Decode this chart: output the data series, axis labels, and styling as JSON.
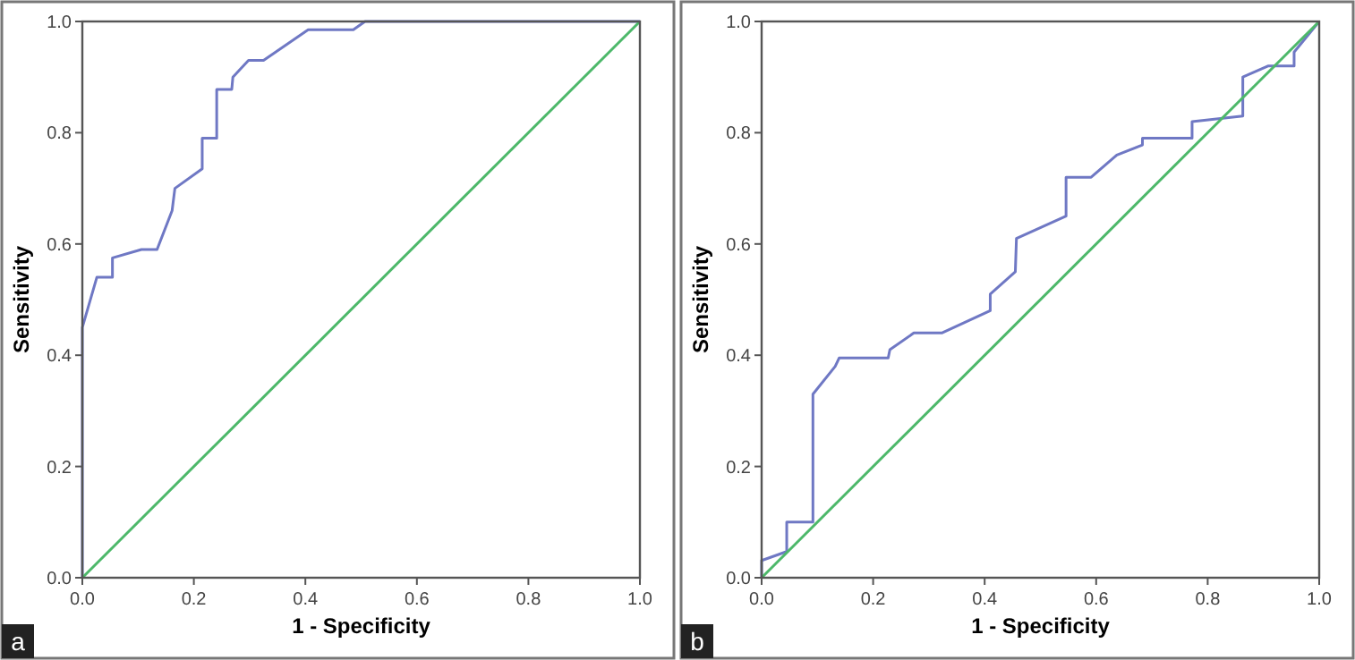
{
  "chart_data": [
    {
      "type": "line",
      "xlabel": "1 - Specificity",
      "ylabel": "Sensitivity",
      "annotations": [
        "a"
      ],
      "xlim": [
        0,
        1
      ],
      "ylim": [
        0,
        1
      ],
      "xticks": [
        {
          "value": 0,
          "label": "0.0"
        },
        {
          "value": 0.2,
          "label": "0.2"
        },
        {
          "value": 0.4,
          "label": "0.4"
        },
        {
          "value": 0.6,
          "label": "0.6"
        },
        {
          "value": 0.8,
          "label": "0.8"
        },
        {
          "value": 1,
          "label": "1.0"
        }
      ],
      "yticks": [
        {
          "value": 0,
          "label": "0.0"
        },
        {
          "value": 0.2,
          "label": "0.2"
        },
        {
          "value": 0.4,
          "label": "0.4"
        },
        {
          "value": 0.6,
          "label": "0.6"
        },
        {
          "value": 0.8,
          "label": "0.8"
        },
        {
          "value": 1,
          "label": "1.0"
        }
      ],
      "grid": false,
      "marker": "none",
      "line_style": "solid",
      "series": [
        {
          "color": "#6f78c4",
          "x": [
            0,
            0,
            0.026,
            0.054,
            0.054,
            0.106,
            0.134,
            0.161,
            0.166,
            0.215,
            0.215,
            0.241,
            0.241,
            0.268,
            0.27,
            0.298,
            0.325,
            0.405,
            0.486,
            0.507,
            1
          ],
          "values": [
            0,
            0.45,
            0.54,
            0.54,
            0.575,
            0.59,
            0.59,
            0.66,
            0.7,
            0.735,
            0.79,
            0.79,
            0.878,
            0.878,
            0.9,
            0.93,
            0.93,
            0.985,
            0.985,
            1,
            1
          ]
        },
        {
          "color": "#4db86a",
          "x": [
            0,
            1
          ],
          "values": [
            0,
            1
          ]
        }
      ]
    },
    {
      "type": "line",
      "xlabel": "1 - Specificity",
      "ylabel": "Sensitivity",
      "annotations": [
        "b"
      ],
      "xlim": [
        0,
        1
      ],
      "ylim": [
        0,
        1
      ],
      "xticks": [
        {
          "value": 0,
          "label": "0.0"
        },
        {
          "value": 0.2,
          "label": "0.2"
        },
        {
          "value": 0.4,
          "label": "0.4"
        },
        {
          "value": 0.6,
          "label": "0.6"
        },
        {
          "value": 0.8,
          "label": "0.8"
        },
        {
          "value": 1,
          "label": "1.0"
        }
      ],
      "yticks": [
        {
          "value": 0,
          "label": "0.0"
        },
        {
          "value": 0.2,
          "label": "0.2"
        },
        {
          "value": 0.4,
          "label": "0.4"
        },
        {
          "value": 0.6,
          "label": "0.6"
        },
        {
          "value": 0.8,
          "label": "0.8"
        },
        {
          "value": 1,
          "label": "1.0"
        }
      ],
      "grid": false,
      "marker": "none",
      "line_style": "solid",
      "series": [
        {
          "color": "#6f78c4",
          "x": [
            0,
            0,
            0.045,
            0.045,
            0.092,
            0.092,
            0.132,
            0.139,
            0.227,
            0.23,
            0.273,
            0.323,
            0.41,
            0.41,
            0.455,
            0.457,
            0.546,
            0.546,
            0.591,
            0.637,
            0.683,
            0.683,
            0.772,
            0.772,
            0.863,
            0.863,
            0.908,
            0.955,
            0.955,
            1
          ],
          "values": [
            0,
            0.031,
            0.047,
            0.1,
            0.1,
            0.33,
            0.38,
            0.395,
            0.395,
            0.41,
            0.44,
            0.44,
            0.48,
            0.51,
            0.55,
            0.61,
            0.65,
            0.72,
            0.72,
            0.76,
            0.778,
            0.79,
            0.79,
            0.82,
            0.83,
            0.9,
            0.92,
            0.92,
            0.945,
            1
          ]
        },
        {
          "color": "#4db86a",
          "x": [
            0,
            1
          ],
          "values": [
            0,
            1
          ]
        }
      ]
    }
  ]
}
